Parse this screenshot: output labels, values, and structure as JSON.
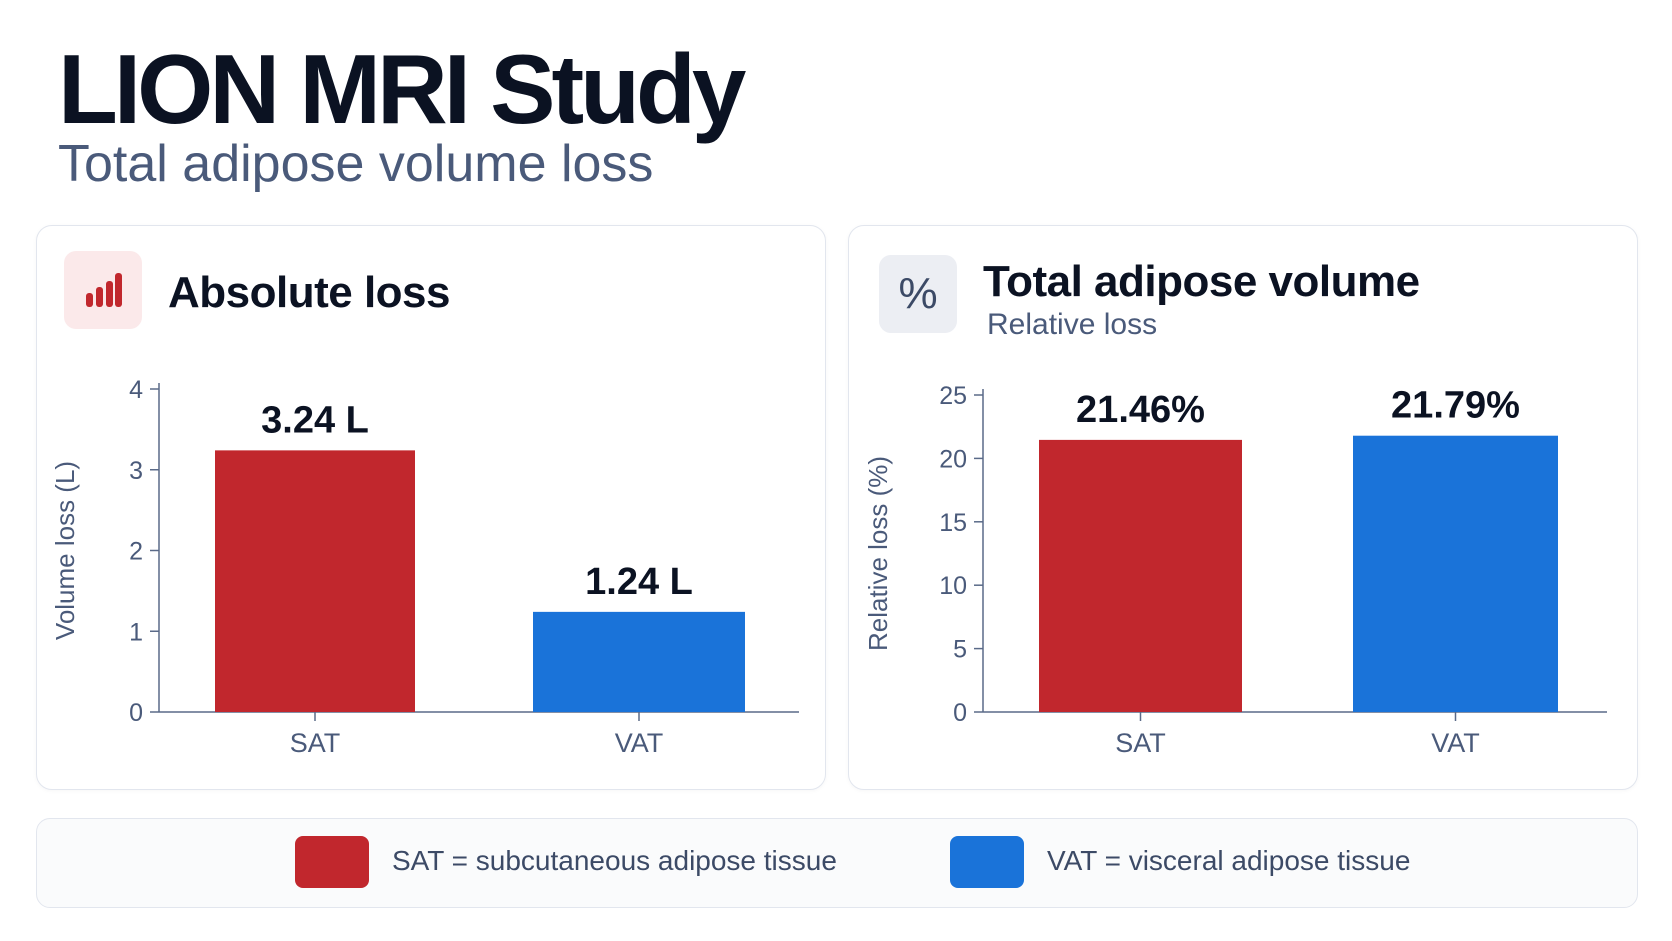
{
  "header": {
    "title": "LION MRI Study",
    "subtitle": "Total adipose volume loss"
  },
  "colors": {
    "sat": "#c1272d",
    "vat": "#1a73d9",
    "axis": "#5a6a88"
  },
  "icons": {
    "absolute": "bar-chart-icon",
    "relative": "percent-icon"
  },
  "cards": {
    "absolute": {
      "title": "Absolute loss",
      "icon_glyph": ""
    },
    "relative": {
      "title": "Total adipose volume",
      "subtitle": "Relative loss",
      "icon_glyph": "%"
    }
  },
  "chart_data": [
    {
      "type": "bar",
      "categories": [
        "SAT",
        "VAT"
      ],
      "values": [
        3.24,
        1.24
      ],
      "value_labels": [
        "3.24 L",
        "1.24 L"
      ],
      "ylabel": "Volume loss (L)",
      "ylim": [
        0,
        4
      ],
      "yticks": [
        0,
        1,
        2,
        3,
        4
      ],
      "grid": false
    },
    {
      "type": "bar",
      "categories": [
        "SAT",
        "VAT"
      ],
      "values": [
        21.46,
        21.79
      ],
      "value_labels": [
        "21.46%",
        "21.79%"
      ],
      "ylabel": "Relative loss (%)",
      "ylim": [
        0,
        25
      ],
      "yticks": [
        0,
        5,
        10,
        15,
        20,
        25
      ],
      "grid": false
    }
  ],
  "legend": [
    {
      "key": "SAT",
      "text": "SAT = subcutaneous adipose tissue"
    },
    {
      "key": "VAT",
      "text": "VAT = visceral adipose tissue"
    }
  ]
}
